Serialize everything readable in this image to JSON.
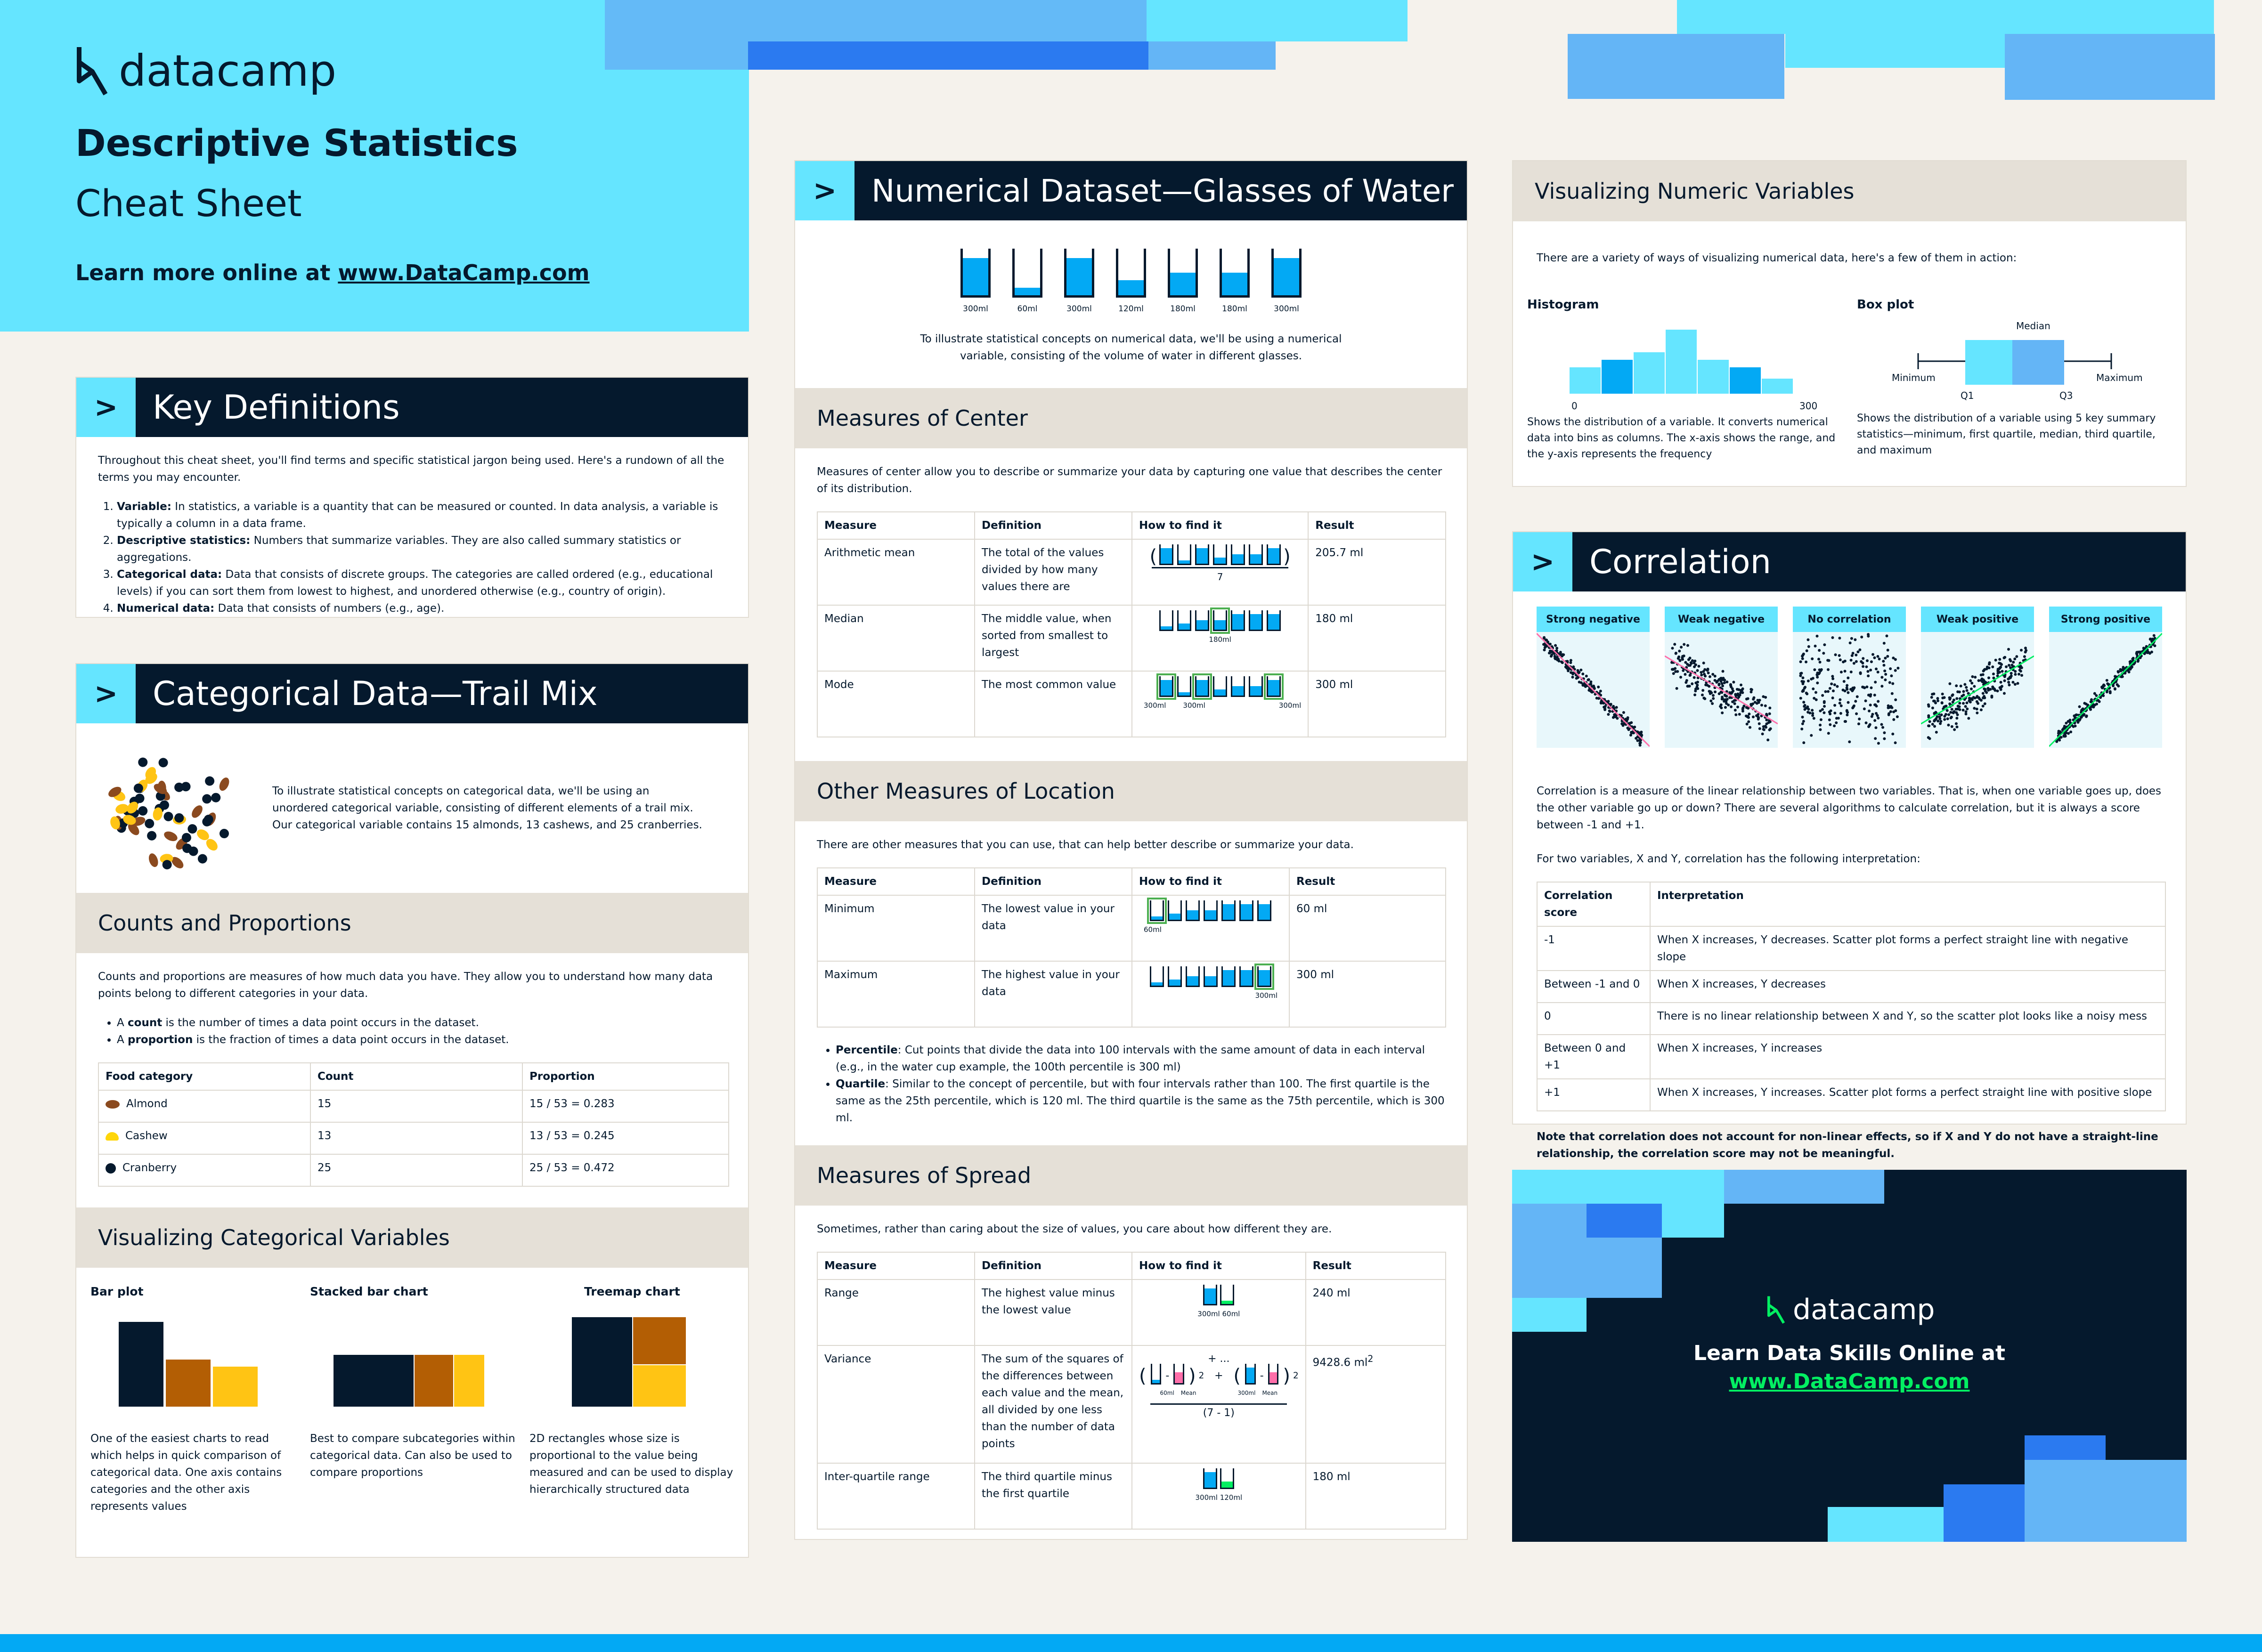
{
  "header": {
    "brand": "datacamp",
    "title": "Descriptive Statistics",
    "subtitle": "Cheat Sheet",
    "learn_prefix": "Learn more online at ",
    "learn_link": "www.DataCamp.com"
  },
  "key_definitions": {
    "title": "Key Definitions",
    "intro": "Throughout this cheat sheet, you'll find terms and specific statistical jargon being used. Here's a rundown of all the terms you may encounter.",
    "items": [
      {
        "term": "Variable:",
        "text": " In statistics, a variable is a quantity that can be measured or counted. In data analysis, a variable is typically a column in a data frame."
      },
      {
        "term": "Descriptive statistics:",
        "text": " Numbers that summarize variables. They are also called summary statistics or aggregations."
      },
      {
        "term": "Categorical data:",
        "text": " Data that consists of discrete groups. The categories are called ordered (e.g., educational levels) if you can sort them from lowest to highest, and unordered otherwise (e.g., country of origin)."
      },
      {
        "term": "Numerical data:",
        "text": " Data that consists of numbers (e.g., age)."
      }
    ]
  },
  "categorical": {
    "title": "Categorical Data—Trail Mix",
    "intro": "To illustrate statistical concepts on categorical data, we'll be using an unordered categorical variable, consisting of different elements of a trail mix. Our categorical variable contains 15 almonds, 13 cashews, and 25 cranberries.",
    "counts_title": "Counts and Proportions",
    "counts_intro": "Counts and proportions are measures of how much data you have. They allow you to understand how many data points belong to different categories in your data.",
    "bullet1_pre": "A ",
    "bullet1_b": "count",
    "bullet1_post": " is the number of times a data point occurs in the dataset.",
    "bullet2_pre": "A ",
    "bullet2_b": "proportion",
    "bullet2_post": " is the fraction of times a data point occurs in the dataset.",
    "table_headers": [
      "Food category",
      "Count",
      "Proportion"
    ],
    "rows": [
      {
        "name": "Almond",
        "count": "15",
        "prop": "15 / 53 = 0.283",
        "color": "#8b4a1f"
      },
      {
        "name": "Cashew",
        "count": "13",
        "prop": "13 / 53 = 0.245",
        "color": "#ffd60a"
      },
      {
        "name": "Cranberry",
        "count": "25",
        "prop": "25 / 53 = 0.472",
        "color": "#05192d"
      }
    ],
    "viz_title": "Visualizing Categorical Variables",
    "bar_title": "Bar plot",
    "bar_desc": "One of the easiest charts to read which helps in quick comparison of categorical data. One axis contains categories and the other axis represents values",
    "stacked_title": "Stacked bar chart",
    "stacked_desc": "Best to compare subcategories within categorical data. Can also be used to compare proportions",
    "treemap_title": "Treemap chart",
    "treemap_desc": "2D rectangles whose size is proportional to the value being measured and can be used to display hierarchically structured data"
  },
  "numerical": {
    "title": "Numerical Dataset—Glasses of Water",
    "glasses": [
      {
        "label": "300ml",
        "fill": 1.0
      },
      {
        "label": "60ml",
        "fill": 0.2
      },
      {
        "label": "300ml",
        "fill": 1.0
      },
      {
        "label": "120ml",
        "fill": 0.4
      },
      {
        "label": "180ml",
        "fill": 0.6
      },
      {
        "label": "180ml",
        "fill": 0.6
      },
      {
        "label": "300ml",
        "fill": 1.0
      }
    ],
    "intro": "To illustrate statistical concepts on numerical data, we'll be using a numerical variable, consisting of the volume of water in different glasses.",
    "center_title": "Measures of Center",
    "center_intro": "Measures of center allow you to describe or summarize your data by capturing one value that describes the center of its distribution.",
    "headers": [
      "Measure",
      "Definition",
      "How to find it",
      "Result"
    ],
    "center_rows": [
      {
        "m": "Arithmetic mean",
        "d": "The total of the values divided by how many values there are",
        "r": "205.7 ml",
        "note": "7"
      },
      {
        "m": "Median",
        "d": "The middle value, when sorted from smallest to largest",
        "r": "180 ml",
        "note": "180ml"
      },
      {
        "m": "Mode",
        "d": "The most common value",
        "r": "300 ml",
        "note": "300ml"
      }
    ],
    "location_title": "Other Measures of Location",
    "location_intro": "There are other measures that you can use, that can help better describe or summarize your data.",
    "location_rows": [
      {
        "m": "Minimum",
        "d": "The lowest value in your data",
        "r": "60 ml",
        "note": "60ml"
      },
      {
        "m": "Maximum",
        "d": "The highest value in your data",
        "r": "300 ml",
        "note": "300ml"
      }
    ],
    "pct_b": "Percentile",
    "pct_t": ": Cut points that divide the data into 100 intervals with the same amount of data in each interval (e.g., in the water cup example, the 100th percentile is 300 ml)",
    "q_b": "Quartile",
    "q_t": ": Similar to the concept of percentile, but with four intervals rather than 100. The first quartile is the same as the 25th percentile, which is 120 ml. The third quartile is the same as the 75th percentile, which is 300 ml.",
    "spread_title": "Measures of Spread",
    "spread_intro": "Sometimes, rather than caring about the size of values, you care about how different they are.",
    "spread_rows": [
      {
        "m": "Range",
        "d": "The highest value minus the lowest value",
        "r": "240 ml",
        "n1": "300ml",
        "n2": "60ml"
      },
      {
        "m": "Variance",
        "d": "The sum of the squares of the differences between each value and the mean, all divided by one less than the number of data points",
        "r": "9428.6 ml",
        "sup": "2",
        "n1": "60ml",
        "n2": "Mean",
        "n3": "300ml",
        "n4": "Mean",
        "den": "(7 - 1)",
        "dots": "+ ... +"
      },
      {
        "m": "Inter-quartile range",
        "d": "The third quartile minus the first quartile",
        "r": "180 ml",
        "n1": "300ml",
        "n2": "120ml"
      }
    ]
  },
  "viz_numeric": {
    "title": "Visualizing Numeric Variables",
    "intro": "There are a variety of ways of visualizing numerical data, here's a few of them in action:",
    "hist_title": "Histogram",
    "hist_min": "0",
    "hist_max": "300",
    "hist_desc": "Shows the distribution of a variable. It converts numerical data into bins as columns. The x-axis shows the range, and the y-axis represents the frequency",
    "box_title": "Box plot",
    "box_median": "Median",
    "box_min": "Minimum",
    "box_max": "Maximum",
    "box_q1": "Q1",
    "box_q3": "Q3",
    "box_desc": "Shows the distribution of a variable using 5 key summary statistics—minimum, first quartile, median, third quartile, and maximum"
  },
  "correlation": {
    "title": "Correlation",
    "labels": [
      "Strong negative",
      "Weak negative",
      "No correlation",
      "Weak positive",
      "Strong positive"
    ],
    "desc1": "Correlation is a measure of the linear relationship between two variables. That is, when one variable goes up, does the other variable go up or down? There are several algorithms to calculate correlation, but it is always a score between -1 and +1.",
    "desc2": "For two variables, X and Y, correlation has the following interpretation:",
    "headers": [
      "Correlation score",
      "Interpretation"
    ],
    "rows": [
      {
        "s": "-1",
        "i": "When X increases, Y decreases. Scatter plot forms a perfect straight line with negative slope"
      },
      {
        "s": "Between -1 and 0",
        "i": "When X increases, Y decreases"
      },
      {
        "s": "0",
        "i": "There is no linear relationship between X and Y, so the scatter plot looks like a noisy mess"
      },
      {
        "s": "Between 0 and +1",
        "i": "When X increases, Y increases"
      },
      {
        "s": "+1",
        "i": "When X increases, Y increases. Scatter plot forms a perfect straight line with positive slope"
      }
    ],
    "note": "Note that correlation does not account for non-linear effects, so if X and Y do not have a straight-line relationship, the correlation score may not be meaningful."
  },
  "promo": {
    "brand": "datacamp",
    "line1": "Learn Data Skills Online at",
    "link": "www.DataCamp.com"
  }
}
